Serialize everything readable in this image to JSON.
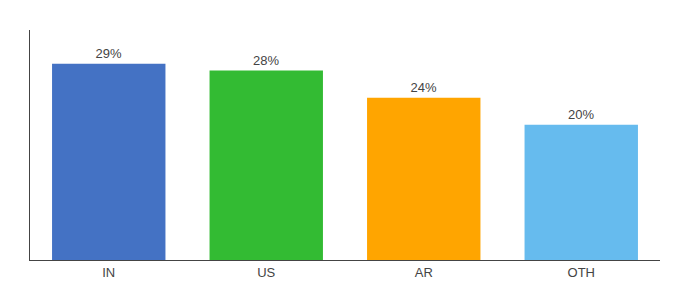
{
  "chart_data": {
    "type": "bar",
    "categories": [
      "IN",
      "US",
      "AR",
      "OTH"
    ],
    "values": [
      29,
      28,
      24,
      20
    ],
    "value_labels": [
      "29%",
      "28%",
      "24%",
      "20%"
    ],
    "colors": [
      "#4472C4",
      "#33BB33",
      "#FFA500",
      "#66BBEE"
    ],
    "ylim": [
      0,
      34
    ],
    "tick_labels": "x",
    "data_labels": true,
    "grid": false
  }
}
